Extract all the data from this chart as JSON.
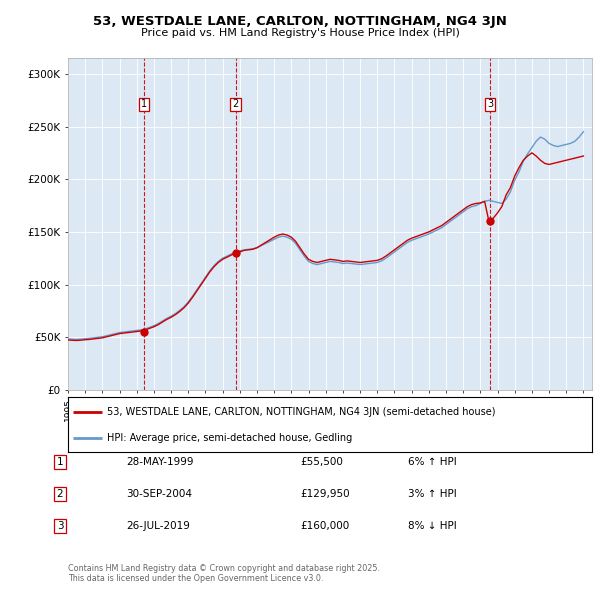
{
  "title": "53, WESTDALE LANE, CARLTON, NOTTINGHAM, NG4 3JN",
  "subtitle": "Price paid vs. HM Land Registry's House Price Index (HPI)",
  "ylabel_ticks": [
    "£0",
    "£50K",
    "£100K",
    "£150K",
    "£200K",
    "£250K",
    "£300K"
  ],
  "ytick_values": [
    0,
    50000,
    100000,
    150000,
    200000,
    250000,
    300000
  ],
  "ylim": [
    0,
    315000
  ],
  "xlim_start": 1995.0,
  "xlim_end": 2025.5,
  "sale_dates": [
    1999.41,
    2004.75,
    2019.56
  ],
  "sale_prices": [
    55500,
    129950,
    160000
  ],
  "sale_labels": [
    "1",
    "2",
    "3"
  ],
  "sale_info": [
    {
      "label": "1",
      "date": "28-MAY-1999",
      "price": "£55,500",
      "change": "6% ↑ HPI"
    },
    {
      "label": "2",
      "date": "30-SEP-2004",
      "price": "£129,950",
      "change": "3% ↑ HPI"
    },
    {
      "label": "3",
      "date": "26-JUL-2019",
      "price": "£160,000",
      "change": "8% ↓ HPI"
    }
  ],
  "hpi_color": "#6699cc",
  "price_color": "#cc0000",
  "dashed_line_color": "#cc0000",
  "background_color": "#dce9f5",
  "legend_label_price": "53, WESTDALE LANE, CARLTON, NOTTINGHAM, NG4 3JN (semi-detached house)",
  "legend_label_hpi": "HPI: Average price, semi-detached house, Gedling",
  "footer": "Contains HM Land Registry data © Crown copyright and database right 2025.\nThis data is licensed under the Open Government Licence v3.0.",
  "hpi_data_x": [
    1995.0,
    1995.25,
    1995.5,
    1995.75,
    1996.0,
    1996.25,
    1996.5,
    1996.75,
    1997.0,
    1997.25,
    1997.5,
    1997.75,
    1998.0,
    1998.25,
    1998.5,
    1998.75,
    1999.0,
    1999.25,
    1999.5,
    1999.75,
    2000.0,
    2000.25,
    2000.5,
    2000.75,
    2001.0,
    2001.25,
    2001.5,
    2001.75,
    2002.0,
    2002.25,
    2002.5,
    2002.75,
    2003.0,
    2003.25,
    2003.5,
    2003.75,
    2004.0,
    2004.25,
    2004.5,
    2004.75,
    2005.0,
    2005.25,
    2005.5,
    2005.75,
    2006.0,
    2006.25,
    2006.5,
    2006.75,
    2007.0,
    2007.25,
    2007.5,
    2007.75,
    2008.0,
    2008.25,
    2008.5,
    2008.75,
    2009.0,
    2009.25,
    2009.5,
    2009.75,
    2010.0,
    2010.25,
    2010.5,
    2010.75,
    2011.0,
    2011.25,
    2011.5,
    2011.75,
    2012.0,
    2012.25,
    2012.5,
    2012.75,
    2013.0,
    2013.25,
    2013.5,
    2013.75,
    2014.0,
    2014.25,
    2014.5,
    2014.75,
    2015.0,
    2015.25,
    2015.5,
    2015.75,
    2016.0,
    2016.25,
    2016.5,
    2016.75,
    2017.0,
    2017.25,
    2017.5,
    2017.75,
    2018.0,
    2018.25,
    2018.5,
    2018.75,
    2019.0,
    2019.25,
    2019.5,
    2019.75,
    2020.0,
    2020.25,
    2020.5,
    2020.75,
    2021.0,
    2021.25,
    2021.5,
    2021.75,
    2022.0,
    2022.25,
    2022.5,
    2022.75,
    2023.0,
    2023.25,
    2023.5,
    2023.75,
    2024.0,
    2024.25,
    2024.5,
    2024.75,
    2025.0
  ],
  "hpi_data_y": [
    48500,
    48200,
    48000,
    48300,
    48700,
    49000,
    49500,
    50000,
    50500,
    51500,
    52500,
    53500,
    54500,
    55000,
    55500,
    56000,
    56500,
    57000,
    58000,
    59500,
    61000,
    63000,
    65500,
    68000,
    70000,
    72500,
    75500,
    79000,
    83500,
    89000,
    95000,
    101000,
    107000,
    113000,
    118000,
    122000,
    125000,
    127000,
    129000,
    131000,
    132000,
    133000,
    133500,
    134000,
    135000,
    137000,
    139000,
    141000,
    143000,
    145000,
    146000,
    145000,
    143000,
    139000,
    133000,
    127000,
    122000,
    120000,
    119000,
    120000,
    121000,
    122000,
    121500,
    121000,
    120000,
    120500,
    120000,
    119500,
    119000,
    119500,
    120000,
    120500,
    121000,
    122500,
    125000,
    128000,
    131000,
    134000,
    137000,
    140000,
    142000,
    143500,
    145000,
    146500,
    148000,
    150000,
    152000,
    154000,
    157000,
    160000,
    163000,
    166000,
    169000,
    172000,
    174000,
    175000,
    177000,
    179000,
    180000,
    179000,
    178000,
    177000,
    181000,
    188000,
    199000,
    207000,
    217000,
    224000,
    230000,
    236000,
    240000,
    238000,
    234000,
    232000,
    231000,
    232000,
    233000,
    234000,
    236000,
    240000,
    245000
  ],
  "price_data_x": [
    1995.0,
    1995.25,
    1995.5,
    1995.75,
    1996.0,
    1996.25,
    1996.5,
    1996.75,
    1997.0,
    1997.25,
    1997.5,
    1997.75,
    1998.0,
    1998.25,
    1998.5,
    1998.75,
    1999.0,
    1999.25,
    1999.5,
    1999.75,
    2000.0,
    2000.25,
    2000.5,
    2000.75,
    2001.0,
    2001.25,
    2001.5,
    2001.75,
    2002.0,
    2002.25,
    2002.5,
    2002.75,
    2003.0,
    2003.25,
    2003.5,
    2003.75,
    2004.0,
    2004.25,
    2004.5,
    2004.75,
    2005.0,
    2005.25,
    2005.5,
    2005.75,
    2006.0,
    2006.25,
    2006.5,
    2006.75,
    2007.0,
    2007.25,
    2007.5,
    2007.75,
    2008.0,
    2008.25,
    2008.5,
    2008.75,
    2009.0,
    2009.25,
    2009.5,
    2009.75,
    2010.0,
    2010.25,
    2010.5,
    2010.75,
    2011.0,
    2011.25,
    2011.5,
    2011.75,
    2012.0,
    2012.25,
    2012.5,
    2012.75,
    2013.0,
    2013.25,
    2013.5,
    2013.75,
    2014.0,
    2014.25,
    2014.5,
    2014.75,
    2015.0,
    2015.25,
    2015.5,
    2015.75,
    2016.0,
    2016.25,
    2016.5,
    2016.75,
    2017.0,
    2017.25,
    2017.5,
    2017.75,
    2018.0,
    2018.25,
    2018.5,
    2018.75,
    2019.0,
    2019.25,
    2019.5,
    2019.75,
    2020.0,
    2020.25,
    2020.5,
    2020.75,
    2021.0,
    2021.25,
    2021.5,
    2021.75,
    2022.0,
    2022.25,
    2022.5,
    2022.75,
    2023.0,
    2023.25,
    2023.5,
    2023.75,
    2024.0,
    2024.25,
    2024.5,
    2024.75,
    2025.0
  ],
  "price_data_y": [
    47500,
    47200,
    47000,
    47300,
    47700,
    48000,
    48500,
    49000,
    49500,
    50500,
    51500,
    52500,
    53500,
    54000,
    54500,
    55000,
    55500,
    56000,
    57000,
    58500,
    60000,
    62000,
    64500,
    67000,
    69000,
    71500,
    74500,
    78000,
    82500,
    88000,
    94000,
    100000,
    106000,
    112000,
    117000,
    121000,
    124000,
    126000,
    128000,
    130000,
    131000,
    132500,
    133000,
    133500,
    135000,
    137500,
    140000,
    142500,
    145000,
    147000,
    148000,
    147000,
    145000,
    141000,
    135000,
    129000,
    124000,
    122000,
    121000,
    122000,
    123000,
    124000,
    123500,
    123000,
    122000,
    122500,
    122000,
    121500,
    121000,
    121500,
    122000,
    122500,
    123000,
    124500,
    127000,
    130000,
    133000,
    136000,
    139000,
    142000,
    144000,
    145500,
    147000,
    148500,
    150000,
    152000,
    154000,
    156000,
    159000,
    162000,
    165000,
    168000,
    171000,
    174000,
    176000,
    177000,
    177500,
    179000,
    160000,
    163000,
    168000,
    174000,
    185000,
    192000,
    203000,
    211000,
    218000,
    222000,
    225000,
    222000,
    218000,
    215000,
    214000,
    215000,
    216000,
    217000,
    218000,
    219000,
    220000,
    221000,
    222000
  ]
}
